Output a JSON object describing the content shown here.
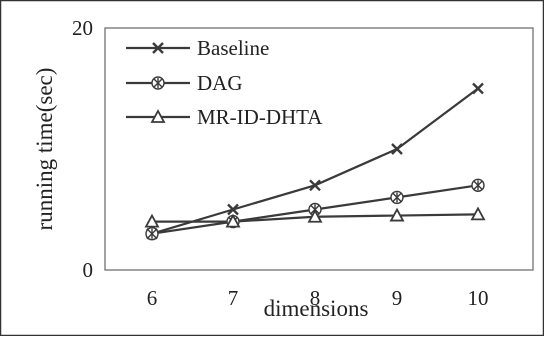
{
  "chart_data": {
    "type": "line",
    "title": "",
    "xlabel": "dimensions",
    "ylabel": "running time(sec)",
    "x": [
      6,
      7,
      8,
      9,
      10
    ],
    "ylim": [
      0,
      20
    ],
    "yticks": [
      0,
      20
    ],
    "grid": false,
    "legend_position": "top-left",
    "series": [
      {
        "name": "Baseline",
        "marker": "x",
        "color": "#3a3a3a",
        "values": [
          3.0,
          5.0,
          7.0,
          10.0,
          15.0
        ]
      },
      {
        "name": "DAG",
        "marker": "asterisk-circle",
        "color": "#3a3a3a",
        "values": [
          3.0,
          4.0,
          5.0,
          6.0,
          7.0
        ]
      },
      {
        "name": "MR-ID-DHTA",
        "marker": "triangle",
        "color": "#3a3a3a",
        "values": [
          4.0,
          4.0,
          4.4,
          4.5,
          4.6
        ]
      }
    ]
  }
}
